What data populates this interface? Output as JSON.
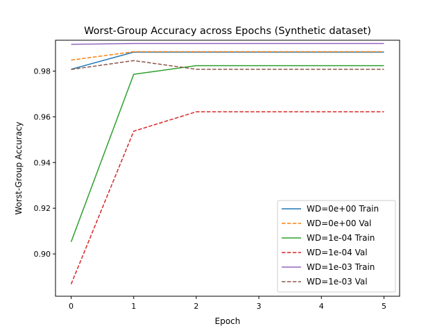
{
  "chart_data": {
    "type": "line",
    "title": "Worst-Group Accuracy across Epochs (Synthetic dataset)",
    "xlabel": "Epoch",
    "ylabel": "Worst-Group Accuracy",
    "xlim": [
      -0.25,
      5.25
    ],
    "ylim": [
      0.8815,
      0.9935
    ],
    "xticks": [
      0,
      1,
      2,
      3,
      4,
      5
    ],
    "xtick_labels": [
      "0",
      "1",
      "2",
      "3",
      "4",
      "5"
    ],
    "yticks": [
      0.9,
      0.92,
      0.94,
      0.96,
      0.98
    ],
    "ytick_labels": [
      "0.90",
      "0.92",
      "0.94",
      "0.96",
      "0.98"
    ],
    "grid": false,
    "legend_position": "lower-right",
    "x": [
      0,
      1,
      2,
      3,
      4,
      5
    ],
    "series": [
      {
        "name": "WD=0e+00 Train",
        "color": "#1f77b4",
        "dash": "solid",
        "values": [
          0.9808,
          0.9883,
          0.9883,
          0.9883,
          0.9883,
          0.9883
        ]
      },
      {
        "name": "WD=0e+00 Val",
        "color": "#ff7f0e",
        "dash": "dashed",
        "values": [
          0.9848,
          0.9885,
          0.9885,
          0.9885,
          0.9885,
          0.9885
        ]
      },
      {
        "name": "WD=1e-04 Train",
        "color": "#2ca02c",
        "dash": "solid",
        "values": [
          0.9053,
          0.9786,
          0.9824,
          0.9824,
          0.9824,
          0.9824
        ]
      },
      {
        "name": "WD=1e-04 Val",
        "color": "#d62728",
        "dash": "dashed",
        "values": [
          0.8868,
          0.9537,
          0.9622,
          0.9622,
          0.9622,
          0.9622
        ]
      },
      {
        "name": "WD=1e-03 Train",
        "color": "#9467bd",
        "dash": "solid",
        "values": [
          0.9917,
          0.9921,
          0.9921,
          0.9921,
          0.9921,
          0.9921
        ]
      },
      {
        "name": "WD=1e-03 Val",
        "color": "#8c564b",
        "dash": "dashed",
        "values": [
          0.9807,
          0.9846,
          0.9808,
          0.9808,
          0.9808,
          0.9808
        ]
      }
    ]
  }
}
